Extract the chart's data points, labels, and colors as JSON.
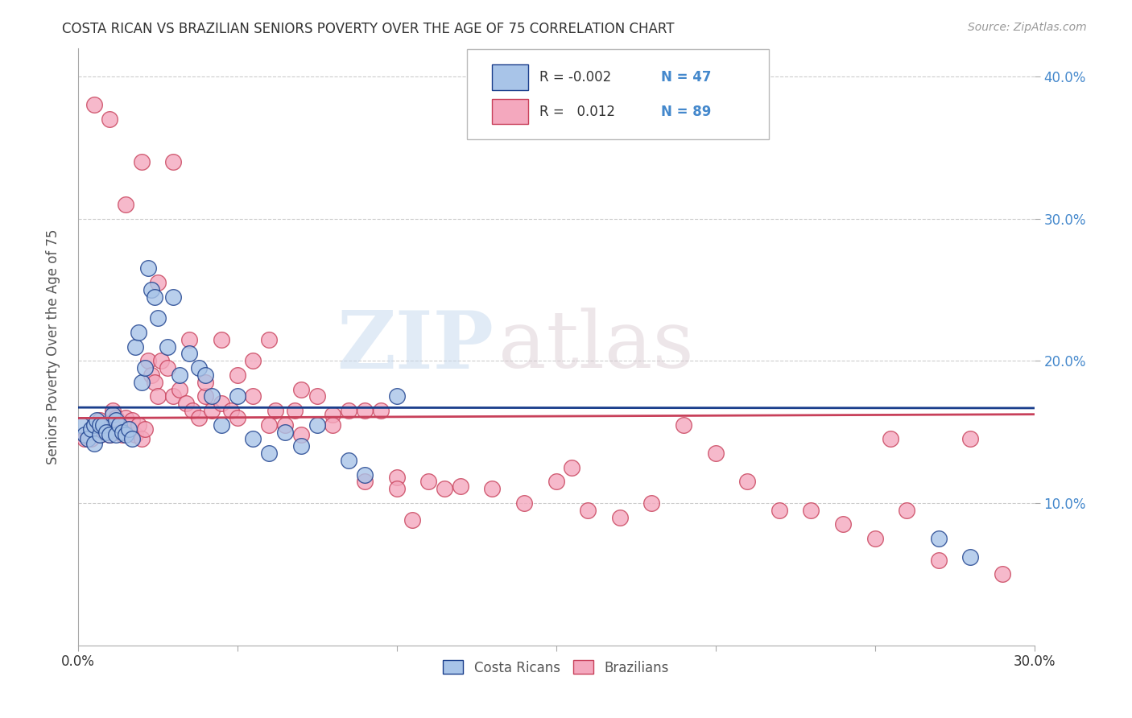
{
  "title": "COSTA RICAN VS BRAZILIAN SENIORS POVERTY OVER THE AGE OF 75 CORRELATION CHART",
  "source": "Source: ZipAtlas.com",
  "ylabel": "Seniors Poverty Over the Age of 75",
  "xlim": [
    0.0,
    0.3
  ],
  "ylim": [
    0.0,
    0.42
  ],
  "xticks": [
    0.0,
    0.05,
    0.1,
    0.15,
    0.2,
    0.25,
    0.3
  ],
  "xtick_labels": [
    "0.0%",
    "",
    "",
    "",
    "",
    "",
    "30.0%"
  ],
  "yticks": [
    0.1,
    0.2,
    0.3,
    0.4
  ],
  "ytick_labels": [
    "10.0%",
    "20.0%",
    "30.0%",
    "40.0%"
  ],
  "watermark_zip": "ZIP",
  "watermark_atlas": "atlas",
  "legend_r1": "R = -0.002",
  "legend_n1": "N = 47",
  "legend_r2": "R =   0.012",
  "legend_n2": "N = 89",
  "color_cr": "#a8c4e8",
  "color_br": "#f4a8be",
  "line_color_cr": "#1a3e8c",
  "line_color_br": "#c8405a",
  "background_color": "#ffffff",
  "grid_color": "#cccccc",
  "cr_x": [
    0.001,
    0.002,
    0.003,
    0.004,
    0.005,
    0.005,
    0.006,
    0.007,
    0.007,
    0.008,
    0.009,
    0.01,
    0.011,
    0.012,
    0.012,
    0.013,
    0.014,
    0.015,
    0.016,
    0.017,
    0.018,
    0.019,
    0.02,
    0.021,
    0.022,
    0.023,
    0.024,
    0.025,
    0.028,
    0.03,
    0.032,
    0.035,
    0.038,
    0.04,
    0.042,
    0.045,
    0.05,
    0.055,
    0.06,
    0.065,
    0.07,
    0.075,
    0.085,
    0.09,
    0.1,
    0.27,
    0.28
  ],
  "cr_y": [
    0.155,
    0.148,
    0.145,
    0.152,
    0.142,
    0.155,
    0.158,
    0.148,
    0.155,
    0.155,
    0.15,
    0.148,
    0.162,
    0.158,
    0.148,
    0.155,
    0.15,
    0.148,
    0.152,
    0.145,
    0.21,
    0.22,
    0.185,
    0.195,
    0.265,
    0.25,
    0.245,
    0.23,
    0.21,
    0.245,
    0.19,
    0.205,
    0.195,
    0.19,
    0.175,
    0.155,
    0.175,
    0.145,
    0.135,
    0.15,
    0.14,
    0.155,
    0.13,
    0.12,
    0.175,
    0.075,
    0.062
  ],
  "br_x": [
    0.002,
    0.003,
    0.004,
    0.005,
    0.006,
    0.007,
    0.007,
    0.008,
    0.009,
    0.01,
    0.011,
    0.011,
    0.012,
    0.013,
    0.014,
    0.015,
    0.016,
    0.017,
    0.018,
    0.019,
    0.02,
    0.021,
    0.022,
    0.023,
    0.024,
    0.025,
    0.026,
    0.028,
    0.03,
    0.032,
    0.034,
    0.036,
    0.038,
    0.04,
    0.042,
    0.045,
    0.048,
    0.05,
    0.055,
    0.06,
    0.062,
    0.065,
    0.068,
    0.07,
    0.075,
    0.08,
    0.085,
    0.09,
    0.095,
    0.1,
    0.105,
    0.11,
    0.115,
    0.12,
    0.13,
    0.14,
    0.15,
    0.155,
    0.16,
    0.17,
    0.18,
    0.19,
    0.2,
    0.21,
    0.22,
    0.23,
    0.24,
    0.25,
    0.255,
    0.26,
    0.27,
    0.28,
    0.29,
    0.005,
    0.01,
    0.015,
    0.02,
    0.025,
    0.03,
    0.035,
    0.04,
    0.045,
    0.05,
    0.055,
    0.06,
    0.07,
    0.08,
    0.09,
    0.1
  ],
  "br_y": [
    0.145,
    0.148,
    0.145,
    0.15,
    0.152,
    0.148,
    0.158,
    0.155,
    0.15,
    0.148,
    0.155,
    0.165,
    0.16,
    0.15,
    0.148,
    0.16,
    0.152,
    0.158,
    0.148,
    0.155,
    0.145,
    0.152,
    0.2,
    0.19,
    0.185,
    0.175,
    0.2,
    0.195,
    0.175,
    0.18,
    0.17,
    0.165,
    0.16,
    0.175,
    0.165,
    0.17,
    0.165,
    0.16,
    0.175,
    0.155,
    0.165,
    0.155,
    0.165,
    0.148,
    0.175,
    0.162,
    0.165,
    0.165,
    0.165,
    0.118,
    0.088,
    0.115,
    0.11,
    0.112,
    0.11,
    0.1,
    0.115,
    0.125,
    0.095,
    0.09,
    0.1,
    0.155,
    0.135,
    0.115,
    0.095,
    0.095,
    0.085,
    0.075,
    0.145,
    0.095,
    0.06,
    0.145,
    0.05,
    0.38,
    0.37,
    0.31,
    0.34,
    0.255,
    0.34,
    0.215,
    0.185,
    0.215,
    0.19,
    0.2,
    0.215,
    0.18,
    0.155,
    0.115,
    0.11
  ]
}
